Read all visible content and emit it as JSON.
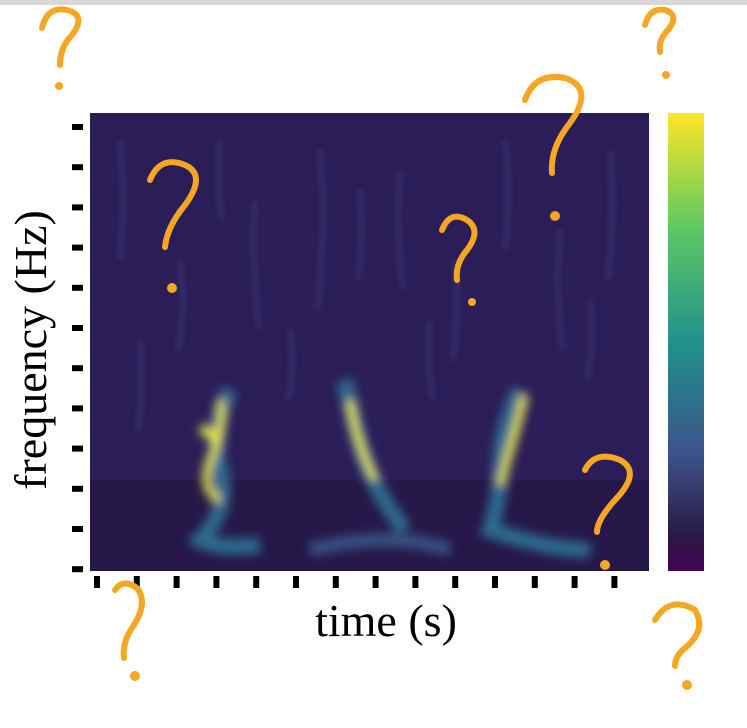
{
  "axis_labels": {
    "y": "frequency (Hz)",
    "x": "time (s)"
  }
}
